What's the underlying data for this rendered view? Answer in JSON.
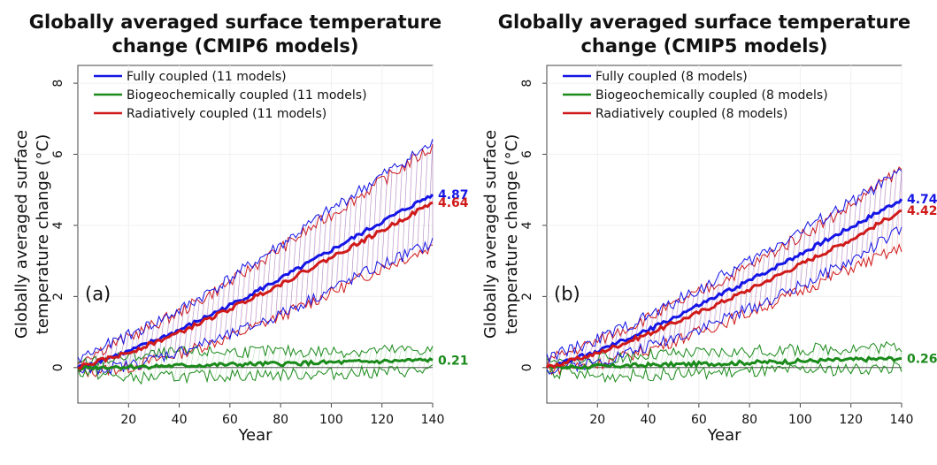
{
  "chart_data": [
    {
      "type": "line",
      "panel_label": "(a)",
      "title": [
        "Globally averaged surface temperature",
        "change (CMIP6 models)"
      ],
      "xlabel": "Year",
      "ylabel": [
        "Globally averaged surface",
        "temperature change (°C)"
      ],
      "xlim": [
        0,
        140
      ],
      "ylim": [
        -1,
        8.5
      ],
      "xticks": [
        20,
        40,
        60,
        80,
        100,
        120,
        140
      ],
      "yticks": [
        0,
        2,
        4,
        6,
        8
      ],
      "grid": true,
      "legend_position": "top-left",
      "series": [
        {
          "name": "Fully coupled (11 models)",
          "color": "#1515e6",
          "x": [
            0,
            20,
            40,
            60,
            80,
            100,
            120,
            140
          ],
          "mean": [
            0,
            0.45,
            1.05,
            1.75,
            2.5,
            3.3,
            4.1,
            4.87
          ],
          "lower": [
            -0.1,
            0.05,
            0.45,
            0.9,
            1.5,
            2.2,
            2.9,
            3.5
          ],
          "upper": [
            0.25,
            0.9,
            1.6,
            2.5,
            3.45,
            4.45,
            5.4,
            6.3
          ],
          "end_label": "4.87"
        },
        {
          "name": "Biogeochemically coupled (11 models)",
          "color": "#1a8a1a",
          "x": [
            0,
            20,
            40,
            60,
            80,
            100,
            120,
            140
          ],
          "mean": [
            0,
            0.02,
            0.05,
            0.08,
            0.11,
            0.14,
            0.17,
            0.21
          ],
          "lower": [
            -0.1,
            -0.3,
            -0.25,
            -0.22,
            -0.2,
            -0.17,
            -0.12,
            -0.08
          ],
          "upper": [
            0.1,
            0.3,
            0.42,
            0.45,
            0.45,
            0.45,
            0.48,
            0.5
          ],
          "end_label": "0.21"
        },
        {
          "name": "Radiatively coupled (11 models)",
          "color": "#d01a1a",
          "x": [
            0,
            20,
            40,
            60,
            80,
            100,
            120,
            140
          ],
          "mean": [
            0,
            0.42,
            0.98,
            1.65,
            2.35,
            3.1,
            3.85,
            4.64
          ],
          "lower": [
            -0.15,
            0.0,
            0.4,
            0.85,
            1.45,
            2.1,
            2.8,
            3.4
          ],
          "upper": [
            0.2,
            0.85,
            1.55,
            2.4,
            3.35,
            4.3,
            5.25,
            6.2
          ],
          "end_label": "4.64"
        }
      ]
    },
    {
      "type": "line",
      "panel_label": "(b)",
      "title": [
        "Globally averaged surface temperature",
        "change (CMIP5 models)"
      ],
      "xlabel": "Year",
      "ylabel": [
        "Globally averaged surface",
        "temperature change (°C)"
      ],
      "xlim": [
        0,
        140
      ],
      "ylim": [
        -1,
        8.5
      ],
      "xticks": [
        20,
        40,
        60,
        80,
        100,
        120,
        140
      ],
      "yticks": [
        0,
        2,
        4,
        6,
        8
      ],
      "grid": true,
      "legend_position": "top-left",
      "series": [
        {
          "name": "Fully coupled (8 models)",
          "color": "#1515e6",
          "x": [
            0,
            20,
            40,
            60,
            80,
            100,
            120,
            140
          ],
          "mean": [
            0,
            0.45,
            1.05,
            1.75,
            2.45,
            3.2,
            3.95,
            4.74
          ],
          "lower": [
            -0.05,
            0.15,
            0.6,
            1.1,
            1.65,
            2.3,
            3.0,
            3.9
          ],
          "upper": [
            0.25,
            0.8,
            1.45,
            2.2,
            3.0,
            3.85,
            4.65,
            5.5
          ],
          "end_label": "4.74"
        },
        {
          "name": "Biogeochemically coupled (8 models)",
          "color": "#1a8a1a",
          "x": [
            0,
            20,
            40,
            60,
            80,
            100,
            120,
            140
          ],
          "mean": [
            0,
            0.03,
            0.07,
            0.1,
            0.14,
            0.18,
            0.22,
            0.26
          ],
          "lower": [
            -0.1,
            -0.25,
            -0.2,
            -0.15,
            -0.12,
            -0.08,
            -0.05,
            0.0
          ],
          "upper": [
            0.1,
            0.25,
            0.35,
            0.4,
            0.45,
            0.5,
            0.55,
            0.6
          ],
          "end_label": "0.26"
        },
        {
          "name": "Radiatively coupled (8 models)",
          "color": "#d01a1a",
          "x": [
            0,
            20,
            40,
            60,
            80,
            100,
            120,
            140
          ],
          "mean": [
            0,
            0.4,
            0.95,
            1.55,
            2.2,
            2.9,
            3.6,
            4.42
          ],
          "lower": [
            -0.05,
            0.1,
            0.5,
            1.0,
            1.55,
            2.15,
            2.8,
            3.35
          ],
          "upper": [
            0.2,
            0.75,
            1.4,
            2.1,
            2.85,
            3.7,
            4.55,
            5.6
          ],
          "end_label": "4.42"
        }
      ]
    }
  ]
}
